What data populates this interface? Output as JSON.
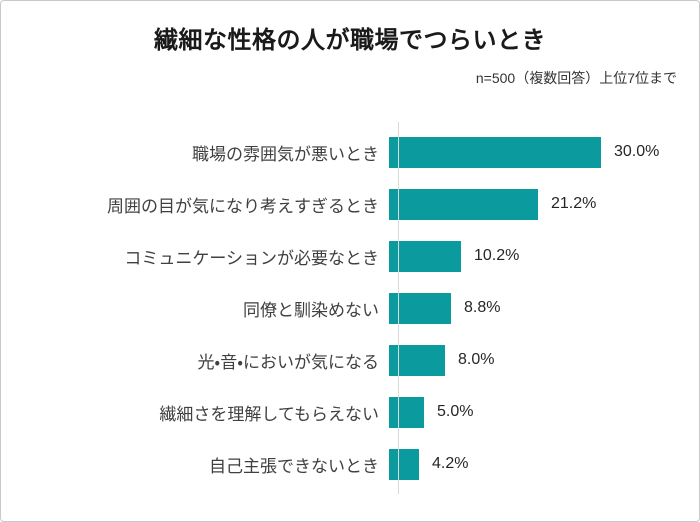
{
  "header": {
    "title": "繊細な性格の人が職場でつらいとき",
    "subtitle": "n=500（複数回答）上位7位まで"
  },
  "colors": {
    "bar": "#0b9a9e",
    "axis_line": "#d9d9d9",
    "outer_border": "#c9c9c9",
    "title_text": "#1a1a1a",
    "category_text": "#404040",
    "value_text": "#262626",
    "background": "#ffffff"
  },
  "chart_data": {
    "type": "bar",
    "orientation": "horizontal",
    "title": "繊細な性格の人が職場でつらいとき",
    "subtitle": "n=500（複数回答）上位7位まで",
    "categories": [
      "職場の雰囲気が悪いとき",
      "周囲の目が気になり考えすぎるとき",
      "コミュニケーションが必要なとき",
      "同僚と馴染めない",
      "光・音・においが気になる",
      "繊細さを理解してもらえない",
      "自己主張できないとき"
    ],
    "values": [
      30.0,
      21.2,
      10.2,
      8.8,
      8.0,
      5.0,
      4.2
    ],
    "value_labels": [
      "30.0%",
      "21.2%",
      "10.2%",
      "8.8%",
      "8.0%",
      "5.0%",
      "4.2%"
    ],
    "xlabel": "",
    "ylabel": "",
    "xlim": [
      0,
      42
    ],
    "grid": false,
    "legend": false,
    "sort_order": "descending"
  }
}
